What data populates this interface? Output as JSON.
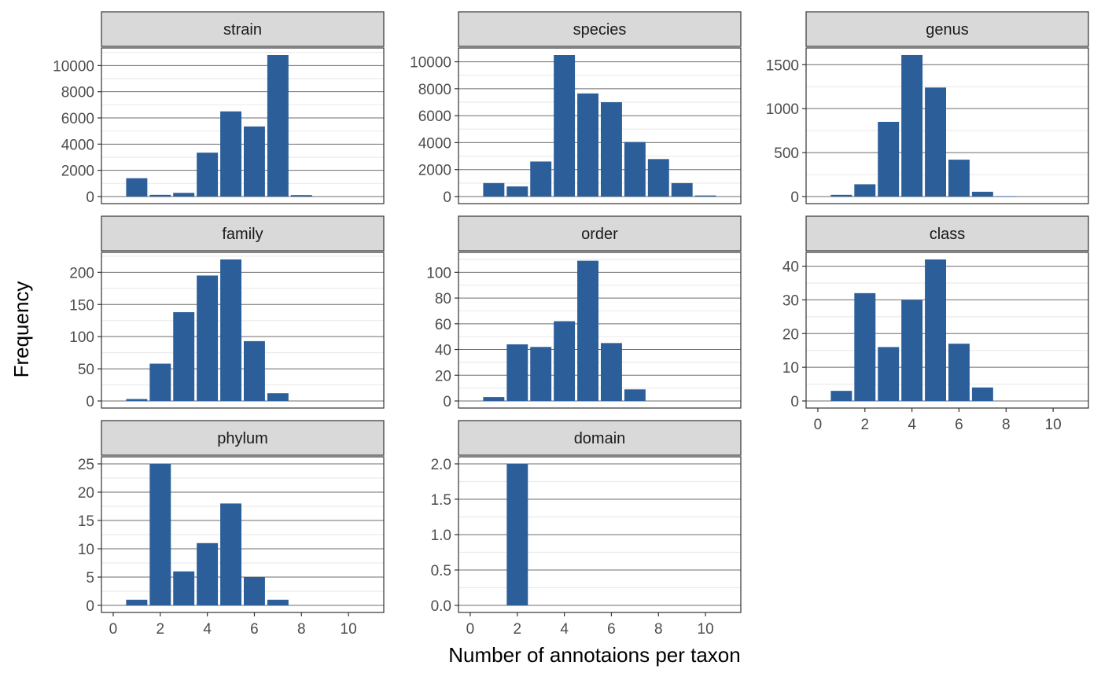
{
  "figure": {
    "xlabel": "Number of annotaions per taxon",
    "ylabel": "Frequency",
    "bar_color": "#2c5f99",
    "strip_fill": "#d9d9d9",
    "panel_border": "#333333",
    "grid_major": "#6e6e6e",
    "grid_minor": "#ebebeb"
  },
  "chart_data": {
    "type": "bar",
    "facet_layout": "3x3 grid, free y scales, shared x axis",
    "x_ticks": [
      0,
      2,
      4,
      6,
      8,
      10
    ],
    "xlim": [
      -0.5,
      11.5
    ],
    "panels": [
      {
        "strip": "strain",
        "y_ticks": [
          "0",
          "2000",
          "4000",
          "6000",
          "8000",
          "10000"
        ],
        "y_tick_values": [
          0,
          2000,
          4000,
          6000,
          8000,
          10000
        ],
        "ylim": [
          -540,
          11340
        ],
        "x": [
          1,
          2,
          3,
          4,
          5,
          6,
          7,
          8
        ],
        "values": [
          1400,
          130,
          280,
          3350,
          6500,
          5350,
          10800,
          110
        ]
      },
      {
        "strip": "species",
        "y_ticks": [
          "0",
          "2000",
          "4000",
          "6000",
          "8000",
          "10000"
        ],
        "y_tick_values": [
          0,
          2000,
          4000,
          6000,
          8000,
          10000
        ],
        "ylim": [
          -525,
          11025
        ],
        "x": [
          1,
          2,
          3,
          4,
          5,
          6,
          7,
          8,
          9,
          10
        ],
        "values": [
          1000,
          750,
          2600,
          10500,
          7650,
          7000,
          4050,
          2780,
          1000,
          80
        ]
      },
      {
        "strip": "genus",
        "y_ticks": [
          "0",
          "500",
          "1000",
          "1500"
        ],
        "y_tick_values": [
          0,
          500,
          1000,
          1500
        ],
        "ylim": [
          -80,
          1690
        ],
        "x": [
          1,
          2,
          3,
          4,
          5,
          6,
          7,
          8
        ],
        "values": [
          20,
          140,
          850,
          1610,
          1240,
          420,
          55,
          5
        ]
      },
      {
        "strip": "family",
        "y_ticks": [
          "0",
          "50",
          "100",
          "150",
          "200"
        ],
        "y_tick_values": [
          0,
          50,
          100,
          150,
          200
        ],
        "ylim": [
          -11,
          231
        ],
        "x": [
          1,
          2,
          3,
          4,
          5,
          6,
          7
        ],
        "values": [
          3,
          58,
          138,
          195,
          220,
          93,
          12
        ]
      },
      {
        "strip": "order",
        "y_ticks": [
          "0",
          "20",
          "40",
          "60",
          "80",
          "100"
        ],
        "y_tick_values": [
          0,
          20,
          40,
          60,
          80,
          100
        ],
        "ylim": [
          -5.5,
          115.5
        ],
        "x": [
          1,
          2,
          3,
          4,
          5,
          6,
          7
        ],
        "values": [
          3,
          44,
          42,
          62,
          109,
          45,
          9
        ]
      },
      {
        "strip": "class",
        "y_ticks": [
          "0",
          "10",
          "20",
          "30",
          "40"
        ],
        "y_tick_values": [
          0,
          10,
          20,
          30,
          40
        ],
        "ylim": [
          -2.1,
          44.1
        ],
        "x": [
          1,
          2,
          3,
          4,
          5,
          6,
          7
        ],
        "values": [
          3,
          32,
          16,
          30,
          42,
          17,
          4
        ]
      },
      {
        "strip": "phylum",
        "y_ticks": [
          "0",
          "5",
          "10",
          "15",
          "20",
          "25"
        ],
        "y_tick_values": [
          0,
          5,
          10,
          15,
          20,
          25
        ],
        "ylim": [
          -1.25,
          26.25
        ],
        "x": [
          1,
          2,
          3,
          4,
          5,
          6,
          7
        ],
        "values": [
          1,
          25,
          6,
          11,
          18,
          5,
          1
        ]
      },
      {
        "strip": "domain",
        "y_ticks": [
          "0.0",
          "0.5",
          "1.0",
          "1.5",
          "2.0"
        ],
        "y_tick_values": [
          0,
          0.5,
          1.0,
          1.5,
          2.0
        ],
        "ylim": [
          -0.1,
          2.1
        ],
        "x": [
          2
        ],
        "values": [
          2
        ]
      }
    ],
    "show_x_axis_under": [
      "class",
      "phylum",
      "domain"
    ]
  }
}
